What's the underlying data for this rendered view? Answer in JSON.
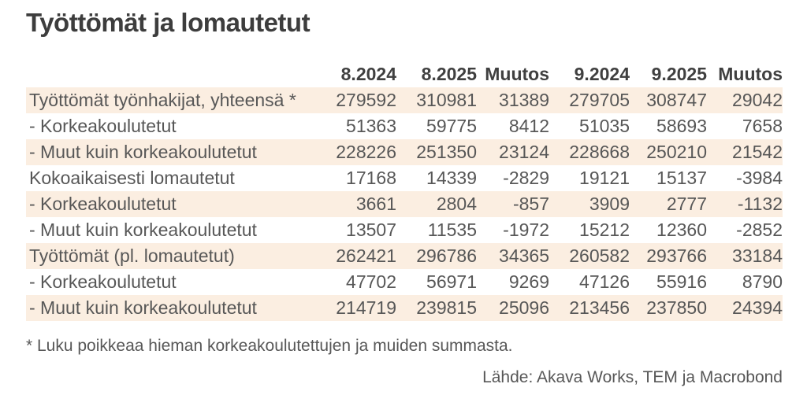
{
  "title": "Työttömät ja lomautetut",
  "footnote": "* Luku poikkeaa hieman korkeakoulutettujen ja muiden summasta.",
  "source": "Lähde: Akava Works, TEM ja Macrobond",
  "colors": {
    "stripe": "#fbeee1",
    "title_text": "#3d3d3d",
    "header_text": "#404040",
    "body_text": "#575757",
    "background": "#ffffff"
  },
  "chart_data": {
    "type": "table",
    "title": "Työttömät ja lomautetut",
    "columns": [
      "8.2024",
      "8.2025",
      "Muutos",
      "9.2024",
      "9.2025",
      "Muutos"
    ],
    "rows": [
      {
        "label": "Työttömät työnhakijat, yhteensä *",
        "values": [
          279592,
          310981,
          31389,
          279705,
          308747,
          29042
        ]
      },
      {
        "label": "- Korkeakoulutetut",
        "values": [
          51363,
          59775,
          8412,
          51035,
          58693,
          7658
        ]
      },
      {
        "label": "- Muut kuin korkeakoulutetut",
        "values": [
          228226,
          251350,
          23124,
          228668,
          250210,
          21542
        ]
      },
      {
        "label": "Kokoaikaisesti lomautetut",
        "values": [
          17168,
          14339,
          -2829,
          19121,
          15137,
          -3984
        ]
      },
      {
        "label": "- Korkeakoulutetut",
        "values": [
          3661,
          2804,
          -857,
          3909,
          2777,
          -1132
        ]
      },
      {
        "label": "- Muut kuin korkeakoulutetut",
        "values": [
          13507,
          11535,
          -1972,
          15212,
          12360,
          -2852
        ]
      },
      {
        "label": "Työttömät (pl. lomautetut)",
        "values": [
          262421,
          296786,
          34365,
          260582,
          293766,
          33184
        ]
      },
      {
        "label": "- Korkeakoulutetut",
        "values": [
          47702,
          56971,
          9269,
          47126,
          55916,
          8790
        ]
      },
      {
        "label": "- Muut kuin korkeakoulutetut",
        "values": [
          214719,
          239815,
          25096,
          213456,
          237850,
          24394
        ]
      }
    ],
    "footnote": "* Luku poikkeaa hieman korkeakoulutettujen ja muiden summasta.",
    "source": "Lähde: Akava Works, TEM ja Macrobond",
    "layout_hints": {
      "stripe_pattern": "odd rows shaded",
      "value_alignment": "right",
      "header_style": "bold, no background"
    }
  }
}
